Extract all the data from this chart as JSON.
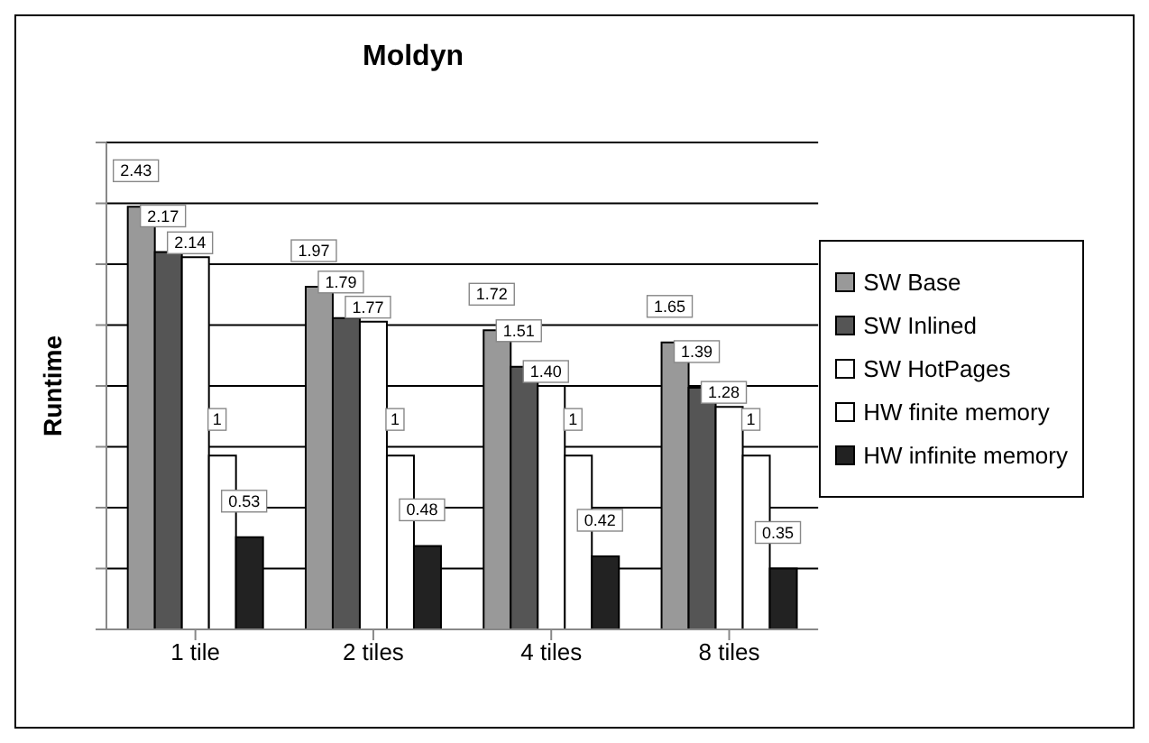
{
  "chart_data": {
    "type": "bar",
    "title": "Moldyn",
    "ylabel": "Runtime",
    "categories": [
      "1 tile",
      "2 tiles",
      "4 tiles",
      "8 tiles"
    ],
    "series": [
      {
        "name": "SW Base",
        "color": "#999999",
        "values": [
          2.43,
          1.97,
          1.72,
          1.65
        ],
        "value_labels": [
          "2.43",
          "1.97",
          "1.72",
          "1.65"
        ]
      },
      {
        "name": "SW Inlined",
        "color": "#555555",
        "values": [
          2.17,
          1.79,
          1.51,
          1.39
        ],
        "value_labels": [
          "2.17",
          "1.79",
          "1.51",
          "1.39"
        ]
      },
      {
        "name": "SW HotPages",
        "color": "#ffffff",
        "values": [
          2.14,
          1.77,
          1.4,
          1.28
        ],
        "value_labels": [
          "2.14",
          "1.77",
          "1.40",
          "1.28"
        ]
      },
      {
        "name": "HW finite memory",
        "color": "#ffffff",
        "values": [
          1,
          1,
          1,
          1
        ],
        "value_labels": [
          "1",
          "1",
          "1",
          "1"
        ]
      },
      {
        "name": "HW infinite memory",
        "color": "#222222",
        "values": [
          0.53,
          0.48,
          0.42,
          0.35
        ],
        "value_labels": [
          "0.53",
          "0.48",
          "0.42",
          "0.35"
        ]
      }
    ],
    "ylim": [
      0,
      2.8
    ],
    "yticks": [
      {
        "value": 0,
        "label": null
      },
      {
        "value": 0.35,
        "label": null
      },
      {
        "value": 0.7,
        "label": null
      },
      {
        "value": 1.05,
        "label": null
      },
      {
        "value": 1.4,
        "label": null
      },
      {
        "value": 1.75,
        "label": null
      },
      {
        "value": 2.1,
        "label": null
      },
      {
        "value": 2.45,
        "label": null
      },
      {
        "value": 2.8,
        "label": null
      }
    ],
    "tick_labels": "x",
    "grid": "y",
    "legend": "right"
  }
}
